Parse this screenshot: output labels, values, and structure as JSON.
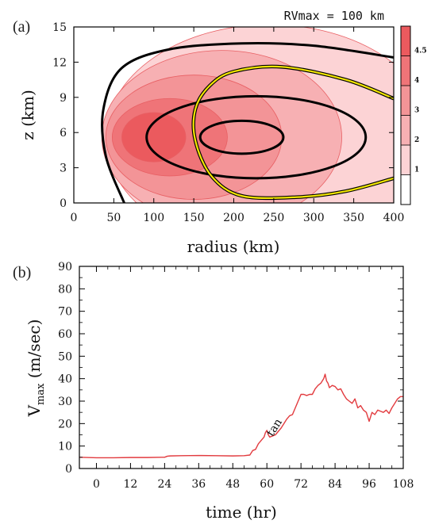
{
  "colors": {
    "fill_levels": [
      "#fcd3d5",
      "#f7b0b3",
      "#f39497",
      "#ef7478",
      "#eb5a5e"
    ],
    "fill_edge": "#e85f63",
    "rmw_contour": "#000000",
    "yellow_contour": "#f2e600",
    "series_line": "#e23b3f"
  },
  "chart_data": [
    {
      "panel_label": "(a)",
      "type": "contour",
      "annotation": "RVmax = 100 km",
      "xlabel": "radius (km)",
      "ylabel": "z (km)",
      "xlim": [
        0,
        400
      ],
      "ylim": [
        0,
        15
      ],
      "xticks": [
        "0",
        "50",
        "100",
        "150",
        "200",
        "250",
        "300",
        "350",
        "400"
      ],
      "yticks": [
        "0",
        "3",
        "6",
        "9",
        "12",
        "15"
      ],
      "colorbar": {
        "levels": [
          1,
          2,
          3,
          4,
          4.5
        ],
        "tick_labels": [
          "1",
          "2",
          "3",
          "4",
          "4.5"
        ]
      },
      "filled_levels": [
        {
          "level": 1,
          "center": [
            245,
            5.6
          ],
          "rx": 205,
          "ry": 9.6
        },
        {
          "level": 2,
          "center": [
            185,
            5.6
          ],
          "rx": 150,
          "ry": 7.4
        },
        {
          "level": 3,
          "center": [
            150,
            5.6
          ],
          "rx": 110,
          "ry": 5.3
        },
        {
          "level": 4,
          "center": [
            120,
            5.6
          ],
          "rx": 72,
          "ry": 3.3
        },
        {
          "level": 4.5,
          "center": [
            100,
            5.6
          ],
          "rx": 40,
          "ry": 2.1
        }
      ],
      "black_contours": [
        {
          "kind": "ellipse",
          "center": [
            210,
            5.6
          ],
          "rx": 52,
          "ry": 1.4
        },
        {
          "kind": "ellipse",
          "center": [
            228,
            5.6
          ],
          "rx": 137,
          "ry": 3.5
        },
        {
          "kind": "curve",
          "points": [
            [
              63,
              0
            ],
            [
              40,
              4
            ],
            [
              37,
              8
            ],
            [
              60,
              11.5
            ],
            [
              120,
              13.1
            ],
            [
              210,
              13.6
            ],
            [
              300,
              13.4
            ],
            [
              400,
              12.4
            ]
          ]
        }
      ],
      "yellow_contours": [
        {
          "points": [
            [
              400,
              8.9
            ],
            [
              340,
              10.5
            ],
            [
              260,
              11.6
            ],
            [
              200,
              11.2
            ],
            [
              170,
              10.0
            ],
            [
              152,
              8.0
            ],
            [
              152,
              5.3
            ],
            [
              172,
              2.3
            ],
            [
              210,
              0.6
            ],
            [
              280,
              0.5
            ],
            [
              340,
              1.0
            ],
            [
              400,
              2.1
            ]
          ]
        }
      ]
    },
    {
      "panel_label": "(b)",
      "type": "line",
      "xlabel": "time (hr)",
      "ylabel": "V",
      "ylabel_sub": "max",
      "ylabel_unit": " (m/sec)",
      "xlim": [
        -6,
        108
      ],
      "ylim": [
        0,
        90
      ],
      "xticks": [
        "0",
        "12",
        "24",
        "36",
        "48",
        "60",
        "72",
        "84",
        "96",
        "108"
      ],
      "yticks": [
        "0",
        "10",
        "20",
        "30",
        "40",
        "50",
        "60",
        "70",
        "80",
        "90"
      ],
      "annotation": {
        "text": "tan",
        "x": 62,
        "y": 14
      },
      "series": [
        {
          "x": [
            -6,
            0,
            6,
            12,
            18,
            23,
            24,
            25,
            26,
            30,
            36,
            42,
            48,
            52,
            54,
            55,
            56,
            57,
            58,
            59,
            59.5,
            60,
            60.5,
            61,
            62,
            63,
            64,
            65,
            66,
            67,
            68,
            69,
            70,
            71,
            72,
            73,
            74,
            75,
            76,
            77,
            78,
            79,
            80,
            80.5,
            81,
            81.5,
            82,
            83,
            84,
            85,
            86,
            87,
            88,
            89,
            90,
            91,
            92,
            93,
            94,
            95,
            96,
            97,
            98,
            99,
            100,
            101,
            102,
            103,
            104,
            105,
            106,
            107,
            108
          ],
          "y": [
            5.0,
            4.8,
            4.8,
            4.9,
            4.9,
            5.0,
            5.0,
            5.5,
            5.6,
            5.7,
            5.8,
            5.7,
            5.6,
            5.7,
            6.0,
            8.0,
            8.5,
            11.0,
            12.5,
            14.0,
            16.0,
            17.0,
            15.0,
            14.0,
            14.5,
            15.0,
            16.5,
            18.0,
            20.0,
            22.0,
            23.5,
            24.0,
            27.0,
            30.0,
            33.0,
            33.0,
            32.5,
            33.0,
            33.0,
            35.5,
            37.0,
            38.0,
            40.0,
            42.0,
            39.0,
            38.0,
            36.0,
            37.0,
            36.5,
            35.0,
            35.5,
            33.0,
            31.0,
            30.0,
            29.0,
            31.0,
            27.0,
            28.0,
            26.0,
            25.0,
            21.0,
            25.0,
            24.0,
            26.0,
            25.5,
            25.0,
            26.0,
            24.5,
            27.0,
            29.0,
            31.0,
            32.0,
            32.0
          ]
        }
      ]
    }
  ]
}
